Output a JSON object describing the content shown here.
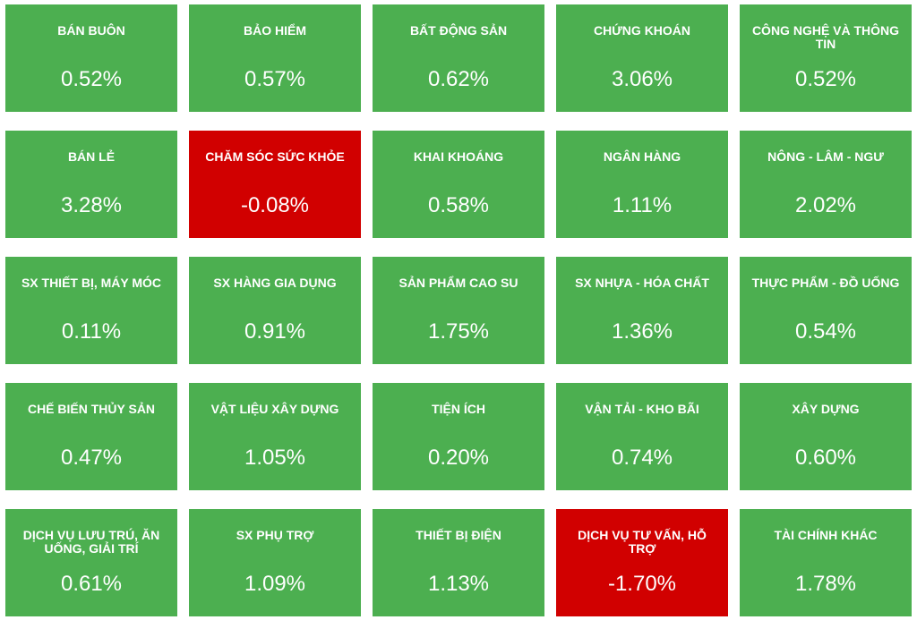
{
  "colors": {
    "positive": "#4caf50",
    "negative": "#d10000",
    "text": "#ffffff"
  },
  "tiles": [
    {
      "label": "BÁN BUÔN",
      "value": "0.52%",
      "status": "positive"
    },
    {
      "label": "BẢO HIỂM",
      "value": "0.57%",
      "status": "positive"
    },
    {
      "label": "BẤT ĐỘNG SẢN",
      "value": "0.62%",
      "status": "positive"
    },
    {
      "label": "CHỨNG KHOÁN",
      "value": "3.06%",
      "status": "positive"
    },
    {
      "label": "CÔNG NGHỆ VÀ THÔNG TIN",
      "value": "0.52%",
      "status": "positive"
    },
    {
      "label": "BÁN LẺ",
      "value": "3.28%",
      "status": "positive"
    },
    {
      "label": "CHĂM SÓC SỨC KHỎE",
      "value": "-0.08%",
      "status": "negative"
    },
    {
      "label": "KHAI KHOÁNG",
      "value": "0.58%",
      "status": "positive"
    },
    {
      "label": "NGÂN HÀNG",
      "value": "1.11%",
      "status": "positive"
    },
    {
      "label": "NÔNG - LÂM - NGƯ",
      "value": "2.02%",
      "status": "positive"
    },
    {
      "label": "SX THIẾT BỊ, MÁY MÓC",
      "value": "0.11%",
      "status": "positive"
    },
    {
      "label": "SX HÀNG GIA DỤNG",
      "value": "0.91%",
      "status": "positive"
    },
    {
      "label": "SẢN PHẨM CAO SU",
      "value": "1.75%",
      "status": "positive"
    },
    {
      "label": "SX NHỰA - HÓA CHẤT",
      "value": "1.36%",
      "status": "positive"
    },
    {
      "label": "THỰC PHẨM - ĐỒ UỐNG",
      "value": "0.54%",
      "status": "positive"
    },
    {
      "label": "CHẾ BIẾN THỦY SẢN",
      "value": "0.47%",
      "status": "positive"
    },
    {
      "label": "VẬT LIỆU XÂY DỰNG",
      "value": "1.05%",
      "status": "positive"
    },
    {
      "label": "TIỆN ÍCH",
      "value": "0.20%",
      "status": "positive"
    },
    {
      "label": "VẬN TẢI - KHO BÃI",
      "value": "0.74%",
      "status": "positive"
    },
    {
      "label": "XÂY DỰNG",
      "value": "0.60%",
      "status": "positive"
    },
    {
      "label": "DỊCH VỤ LƯU TRÚ, ĂN UỐNG, GIẢI TRÍ",
      "value": "0.61%",
      "status": "positive"
    },
    {
      "label": "SX PHỤ TRỢ",
      "value": "1.09%",
      "status": "positive"
    },
    {
      "label": "THIẾT BỊ ĐIỆN",
      "value": "1.13%",
      "status": "positive"
    },
    {
      "label": "DỊCH VỤ TƯ VẤN, HỖ TRỢ",
      "value": "-1.70%",
      "status": "negative"
    },
    {
      "label": "TÀI CHÍNH KHÁC",
      "value": "1.78%",
      "status": "positive"
    }
  ]
}
